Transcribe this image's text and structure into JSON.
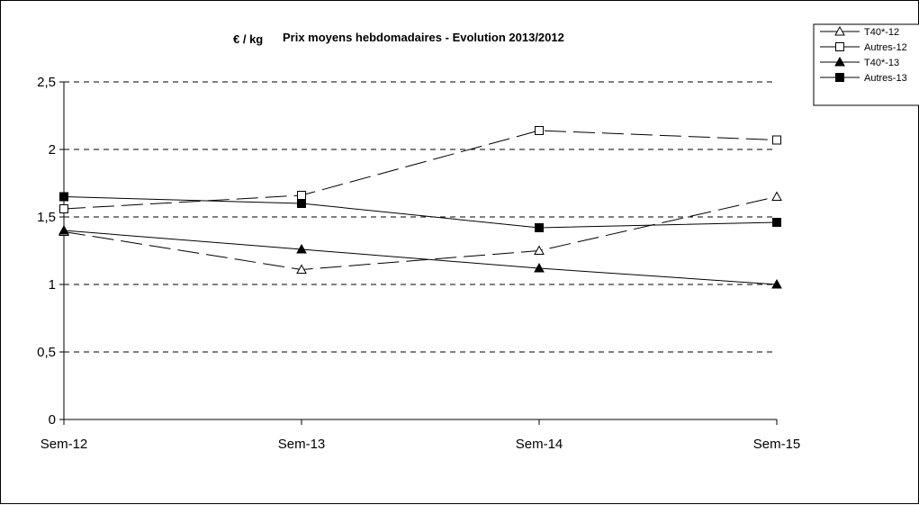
{
  "chart_data": {
    "type": "line",
    "title": "Prix moyens hebdomadaires - Evolution  2013/2012",
    "ylabel": "€ / kg",
    "xlabel": "",
    "categories": [
      "Sem-12",
      "Sem-13",
      "Sem-14",
      "Sem-15"
    ],
    "ylim": [
      0,
      2.5
    ],
    "yticks": [
      "0",
      "0,5",
      "1",
      "1,5",
      "2",
      "2,5"
    ],
    "grid": "horizontal dashed",
    "legend_position": "top-right",
    "series": [
      {
        "name": "T40*-12",
        "values": [
          1.39,
          1.11,
          1.25,
          1.65
        ],
        "marker": "triangle-open",
        "line": "dashed",
        "color": "#000000"
      },
      {
        "name": "Autres-12",
        "values": [
          1.56,
          1.66,
          2.14,
          2.07
        ],
        "marker": "square-open",
        "line": "dashed",
        "color": "#000000"
      },
      {
        "name": "T40*-13",
        "values": [
          1.4,
          1.26,
          1.12,
          1.0
        ],
        "marker": "triangle-filled",
        "line": "solid",
        "color": "#000000"
      },
      {
        "name": "Autres-13",
        "values": [
          1.65,
          1.6,
          1.42,
          1.46
        ],
        "marker": "square-filled",
        "line": "solid",
        "color": "#000000"
      }
    ]
  }
}
